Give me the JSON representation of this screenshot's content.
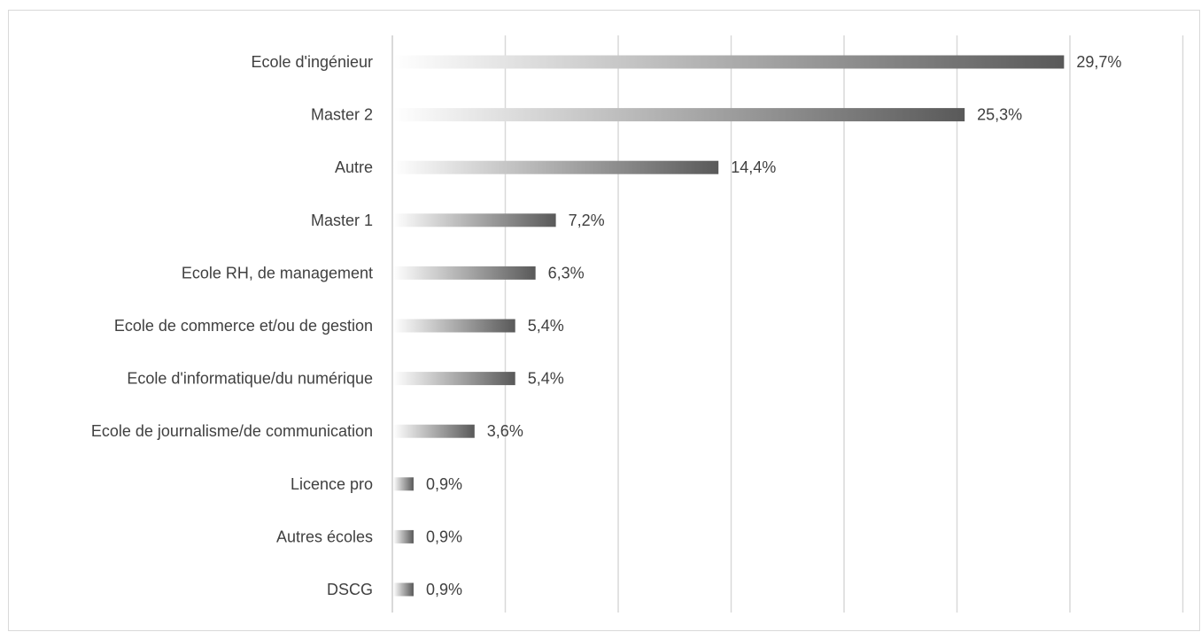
{
  "chart_data": {
    "type": "bar",
    "orientation": "horizontal",
    "categories": [
      "Ecole d'ingénieur",
      "Master 2",
      "Autre",
      "Master 1",
      "Ecole RH, de management",
      "Ecole de commerce et/ou de gestion",
      "Ecole d'informatique/du numérique",
      "Ecole de journalisme/de communication",
      "Licence pro",
      "Autres écoles",
      "DSCG"
    ],
    "values": [
      29.7,
      25.3,
      14.4,
      7.2,
      6.3,
      5.4,
      5.4,
      3.6,
      0.9,
      0.9,
      0.9
    ],
    "data_labels": [
      "29,7%",
      "25,3%",
      "14,4%",
      "7,2%",
      "6,3%",
      "5,4%",
      "5,4%",
      "3,6%",
      "0,9%",
      "0,9%",
      "0,9%"
    ],
    "title": "",
    "xlabel": "",
    "ylabel": "",
    "xlim": [
      0,
      35
    ],
    "vertical_grid": true,
    "tick_labels_shown": false,
    "legend": "none",
    "bar_fill": "gradient",
    "bar_color_start": "#ffffff",
    "bar_color_end": "#595959",
    "grid_color": "#d9d9d9",
    "text_color": "#404040"
  }
}
